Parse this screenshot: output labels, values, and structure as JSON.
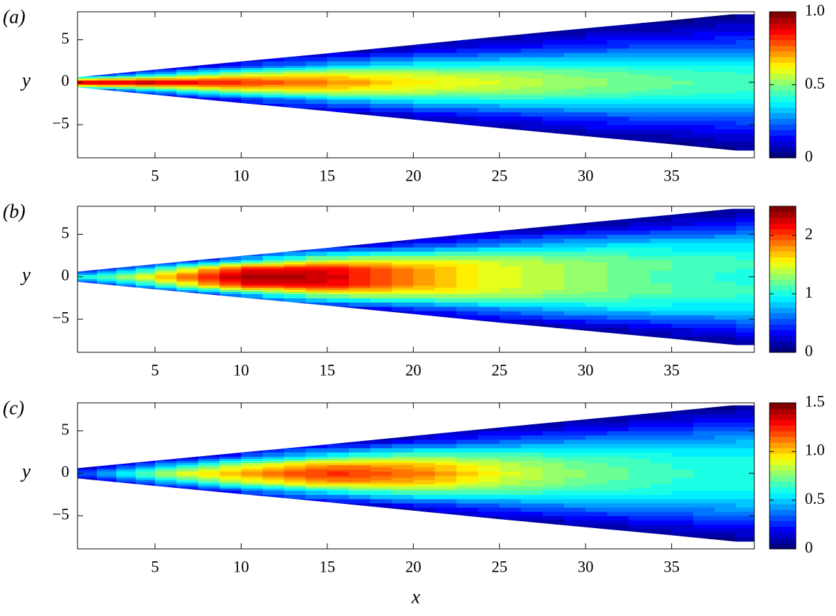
{
  "chart_data": [
    {
      "type": "contour",
      "label": "(a)",
      "ylabel": "y",
      "colormap": "jet",
      "xlim": [
        0.5,
        39.8
      ],
      "ylim": [
        -8.9,
        8.3
      ],
      "xticks": [
        5,
        10,
        15,
        20,
        25,
        30,
        35
      ],
      "yticks": [
        {
          "value": -5,
          "label": "−5"
        },
        0,
        5
      ],
      "x": [
        0.5,
        5,
        10,
        15,
        20,
        25,
        30,
        35,
        40
      ],
      "y": [
        -8,
        -6,
        -4,
        -2,
        -1,
        0,
        1,
        2,
        4,
        6,
        8
      ],
      "edge": [
        0.6,
        1.48,
        2.45,
        3.4,
        4.4,
        5.4,
        6.35,
        7.3,
        8.3
      ],
      "values": [
        [
          null,
          null,
          null,
          null,
          null,
          1.0,
          null,
          null,
          null,
          null,
          null
        ],
        [
          null,
          null,
          null,
          null,
          0.31,
          0.97,
          0.31,
          null,
          null,
          null,
          null
        ],
        [
          null,
          null,
          null,
          0.16,
          0.56,
          0.85,
          0.56,
          0.16,
          null,
          null,
          null
        ],
        [
          null,
          null,
          null,
          0.32,
          0.61,
          0.75,
          0.61,
          0.32,
          null,
          null,
          null
        ],
        [
          null,
          null,
          0.08,
          0.39,
          0.57,
          0.65,
          0.57,
          0.39,
          0.08,
          null,
          null
        ],
        [
          null,
          null,
          0.15,
          0.41,
          0.53,
          0.58,
          0.53,
          0.41,
          0.15,
          null,
          null
        ],
        [
          null,
          0.06,
          0.2,
          0.41,
          0.49,
          0.52,
          0.49,
          0.41,
          0.2,
          0.06,
          null
        ],
        [
          null,
          0.09,
          0.22,
          0.39,
          0.45,
          0.47,
          0.45,
          0.39,
          0.22,
          0.09,
          null
        ],
        [
          0.04,
          0.12,
          0.25,
          0.38,
          0.42,
          0.44,
          0.42,
          0.38,
          0.25,
          0.12,
          0.04
        ]
      ],
      "clim": [
        0,
        1
      ],
      "cticks": [
        0,
        0.5,
        {
          "value": 1,
          "label": "1.0"
        }
      ]
    },
    {
      "type": "contour",
      "label": "(b)",
      "ylabel": "y",
      "colormap": "jet",
      "xlim": [
        0.5,
        39.8
      ],
      "ylim": [
        -8.9,
        8.3
      ],
      "xticks": [
        5,
        10,
        15,
        20,
        25,
        30,
        35
      ],
      "yticks": [
        {
          "value": -5,
          "label": "−5"
        },
        0,
        5
      ],
      "x": [
        0.5,
        5,
        10,
        15,
        20,
        25,
        30,
        35,
        40
      ],
      "y": [
        -8,
        -6,
        -4,
        -2,
        -1,
        0,
        1,
        2,
        4,
        6,
        8
      ],
      "edge": [
        0.6,
        1.48,
        2.45,
        3.4,
        4.4,
        5.4,
        6.35,
        7.3,
        8.3
      ],
      "values": [
        [
          null,
          null,
          null,
          null,
          null,
          1.0,
          null,
          null,
          null,
          null,
          null
        ],
        [
          null,
          null,
          null,
          null,
          1.0,
          1.7,
          1.0,
          null,
          null,
          null,
          null
        ],
        [
          null,
          null,
          null,
          0.8,
          2.1,
          2.4,
          2.1,
          0.8,
          null,
          null,
          null
        ],
        [
          null,
          null,
          null,
          1.4,
          2.2,
          2.3,
          2.2,
          1.4,
          null,
          null,
          null
        ],
        [
          null,
          null,
          0.3,
          1.5,
          1.8,
          1.8,
          1.8,
          1.5,
          0.3,
          null,
          null
        ],
        [
          null,
          null,
          0.6,
          1.4,
          1.5,
          1.5,
          1.5,
          1.4,
          0.6,
          null,
          null
        ],
        [
          null,
          0.15,
          0.8,
          1.25,
          1.3,
          1.3,
          1.3,
          1.25,
          0.8,
          0.15,
          null
        ],
        [
          null,
          0.3,
          0.85,
          1.15,
          1.15,
          1.1,
          1.15,
          1.15,
          0.85,
          0.3,
          null
        ],
        [
          0.1,
          0.45,
          0.85,
          1.05,
          1.05,
          1.0,
          1.05,
          1.05,
          0.85,
          0.45,
          0.1
        ]
      ],
      "clim": [
        0,
        2.5
      ],
      "cticks": [
        0,
        1,
        2
      ]
    },
    {
      "type": "contour",
      "label": "(c)",
      "ylabel": "y",
      "xlabel": "x",
      "colormap": "jet",
      "xlim": [
        0.5,
        39.8
      ],
      "ylim": [
        -8.9,
        8.3
      ],
      "xticks": [
        5,
        10,
        15,
        20,
        25,
        30,
        35
      ],
      "yticks": [
        {
          "value": -5,
          "label": "−5"
        },
        0,
        5
      ],
      "x": [
        0.5,
        5,
        10,
        15,
        20,
        25,
        30,
        35,
        40
      ],
      "y": [
        -8,
        -6,
        -4,
        -2,
        -1,
        0,
        1,
        2,
        4,
        6,
        8
      ],
      "edge": [
        0.6,
        1.48,
        2.45,
        3.4,
        4.4,
        5.4,
        6.35,
        7.3,
        8.3
      ],
      "values": [
        [
          null,
          null,
          null,
          null,
          null,
          0.3,
          null,
          null,
          null,
          null,
          null
        ],
        [
          null,
          null,
          null,
          null,
          0.4,
          0.8,
          0.4,
          null,
          null,
          null,
          null
        ],
        [
          null,
          null,
          null,
          0.3,
          0.85,
          1.1,
          0.85,
          0.3,
          null,
          null,
          null
        ],
        [
          null,
          null,
          null,
          0.6,
          1.1,
          1.25,
          1.1,
          0.6,
          null,
          null,
          null
        ],
        [
          null,
          null,
          0.15,
          0.75,
          1.05,
          1.15,
          1.05,
          0.75,
          0.15,
          null,
          null
        ],
        [
          null,
          null,
          0.3,
          0.7,
          0.85,
          0.9,
          0.85,
          0.7,
          0.3,
          null,
          null
        ],
        [
          null,
          0.1,
          0.38,
          0.65,
          0.72,
          0.75,
          0.72,
          0.65,
          0.38,
          0.1,
          null
        ],
        [
          null,
          0.18,
          0.42,
          0.6,
          0.63,
          0.65,
          0.63,
          0.6,
          0.42,
          0.18,
          null
        ],
        [
          0.05,
          0.25,
          0.45,
          0.57,
          0.6,
          0.6,
          0.6,
          0.57,
          0.45,
          0.25,
          0.05
        ]
      ],
      "clim": [
        0,
        1.5
      ],
      "cticks": [
        0,
        0.5,
        {
          "value": 1,
          "label": "1.0"
        },
        1.5
      ]
    }
  ]
}
